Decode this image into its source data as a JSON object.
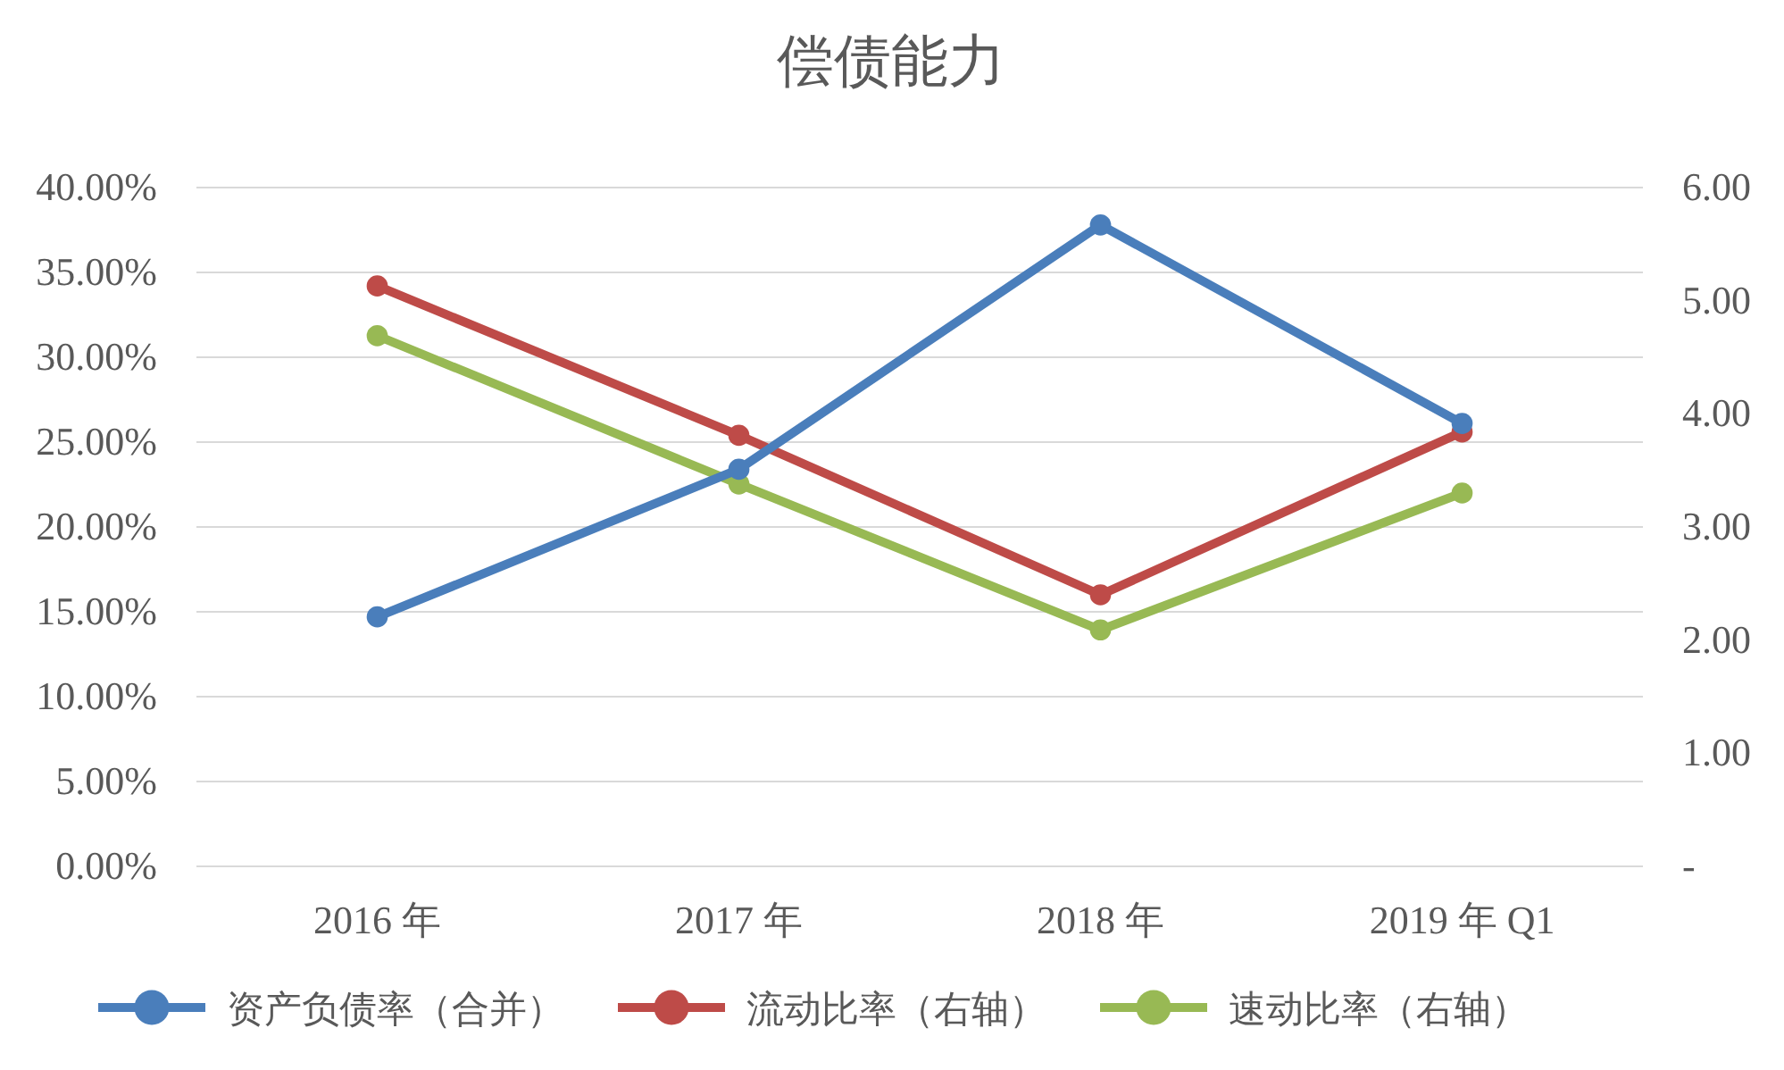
{
  "chart_data": {
    "type": "line",
    "title": "偿债能力",
    "categories": [
      "2016 年",
      "2017 年",
      "2018 年",
      "2019 年 Q1"
    ],
    "series": [
      {
        "name": "资产负债率（合并）",
        "color": "#4a7ebb",
        "values": [
          14.7,
          23.4,
          37.8,
          26.1
        ]
      },
      {
        "name": "流动比率（右轴）",
        "color": "#be4b48",
        "values": [
          5.13,
          3.81,
          2.4,
          3.84
        ],
        "axis": "y2"
      },
      {
        "name": "速动比率（右轴）",
        "color": "#98b954",
        "values": [
          4.69,
          3.38,
          2.09,
          3.3
        ],
        "axis": "y2"
      }
    ],
    "ylim": [
      0,
      40
    ],
    "yticks": [
      {
        "value": 0,
        "label": "0.00%"
      },
      {
        "value": 5,
        "label": "5.00%"
      },
      {
        "value": 10,
        "label": "10.00%"
      },
      {
        "value": 15,
        "label": "15.00%"
      },
      {
        "value": 20,
        "label": "20.00%"
      },
      {
        "value": 25,
        "label": "25.00%"
      },
      {
        "value": 30,
        "label": "30.00%"
      },
      {
        "value": 35,
        "label": "35.00%"
      },
      {
        "value": 40,
        "label": "40.00%"
      }
    ],
    "y2lim": [
      0,
      6
    ],
    "y2ticks": [
      {
        "value": 0,
        "label": "-"
      },
      {
        "value": 1,
        "label": "1.00"
      },
      {
        "value": 2,
        "label": "2.00"
      },
      {
        "value": 3,
        "label": "3.00"
      },
      {
        "value": 4,
        "label": "4.00"
      },
      {
        "value": 5,
        "label": "5.00"
      },
      {
        "value": 6,
        "label": "6.00"
      }
    ],
    "grid": "y",
    "legend": "bottom",
    "marker": "circle",
    "line_style": "solid"
  }
}
